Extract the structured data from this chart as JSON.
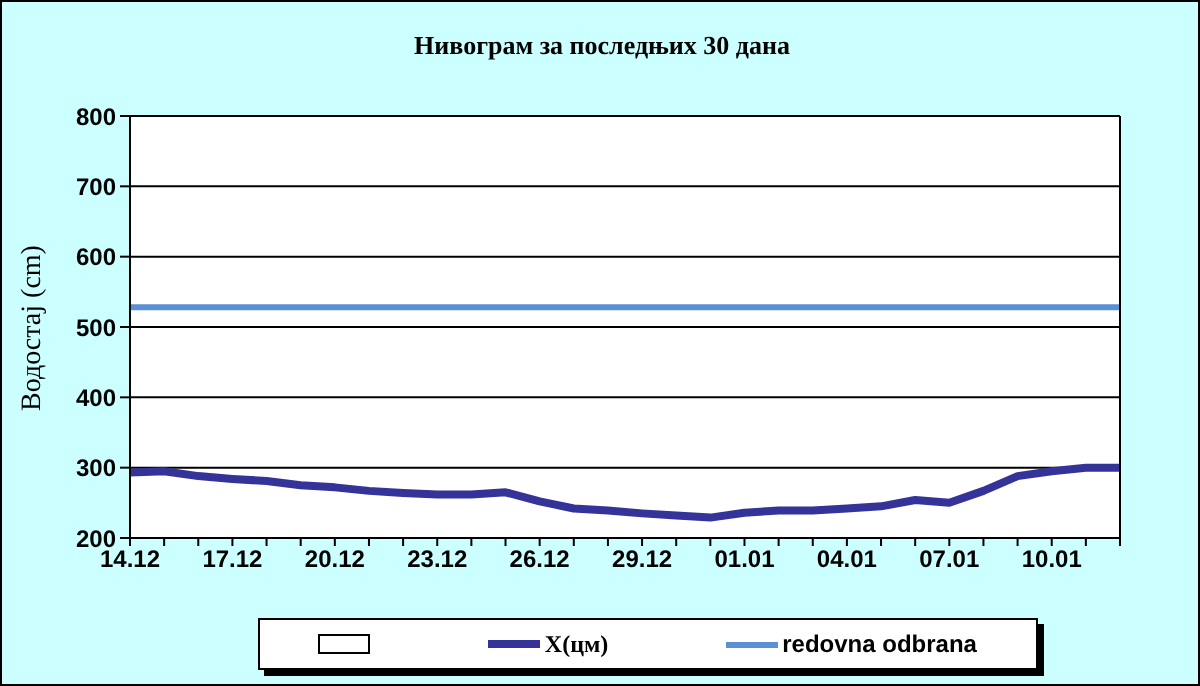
{
  "chart_data": {
    "type": "line",
    "title": "Нивограм за последњих 30 дана",
    "ylabel": "Водостај (cm)",
    "categories": [
      "14.12",
      null,
      null,
      "17.12",
      null,
      null,
      "20.12",
      null,
      null,
      "23.12",
      null,
      null,
      "26.12",
      null,
      null,
      "29.12",
      null,
      null,
      "01.01",
      null,
      null,
      "04.01",
      null,
      null,
      "07.01",
      null,
      null,
      "10.01",
      null,
      null
    ],
    "series": [
      {
        "name": "X(цм)",
        "color": "#333399",
        "values": [
          293,
          295,
          288,
          284,
          281,
          275,
          272,
          267,
          264,
          262,
          262,
          265,
          252,
          242,
          239,
          235,
          232,
          229,
          236,
          239,
          239,
          242,
          245,
          254,
          250,
          267,
          288,
          295,
          300,
          300
        ]
      },
      {
        "name": "redovna odbrana",
        "color": "#5b8fd6",
        "values": [
          528,
          528,
          528,
          528,
          528,
          528,
          528,
          528,
          528,
          528,
          528,
          528,
          528,
          528,
          528,
          528,
          528,
          528,
          528,
          528,
          528,
          528,
          528,
          528,
          528,
          528,
          528,
          528,
          528,
          528
        ]
      }
    ],
    "ylim": [
      200,
      800
    ],
    "yticks": [
      200,
      300,
      400,
      500,
      600,
      700,
      800
    ],
    "grid": "y",
    "legend": "bottom",
    "marker": "none",
    "line_style": "solid"
  }
}
